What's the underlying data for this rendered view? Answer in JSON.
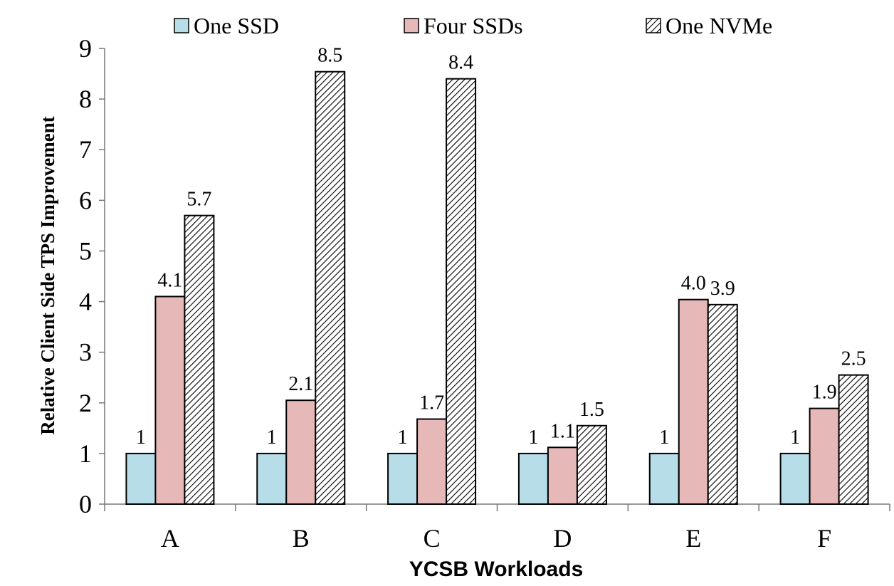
{
  "chart_data": {
    "type": "bar",
    "title": "",
    "xlabel": "YCSB Workloads",
    "ylabel": "Relative Client Side TPS Improvement",
    "categories": [
      "A",
      "B",
      "C",
      "D",
      "E",
      "F"
    ],
    "ylim": [
      0,
      9
    ],
    "yticks": [
      0,
      1,
      2,
      3,
      4,
      5,
      6,
      7,
      8,
      9
    ],
    "grid": false,
    "legend_position": "top",
    "series": [
      {
        "name": "One SSD",
        "values": [
          1,
          1,
          1,
          1,
          1,
          1
        ],
        "labels": [
          "1",
          "1",
          "1",
          "1",
          "1",
          "1"
        ],
        "color": "#b7dde8",
        "pattern": "solid"
      },
      {
        "name": "Four SSDs",
        "values": [
          4.1,
          2.05,
          1.68,
          1.12,
          4.04,
          1.89
        ],
        "labels": [
          "4.1",
          "2.1",
          "1.7",
          "1.1",
          "4.0",
          "1.9"
        ],
        "color": "#e6b9b8",
        "pattern": "solid"
      },
      {
        "name": "One NVMe",
        "values": [
          5.7,
          8.54,
          8.4,
          1.55,
          3.94,
          2.55
        ],
        "labels": [
          "5.7",
          "8.5",
          "8.4",
          "1.5",
          "3.9",
          "2.5"
        ],
        "color": "#ffffff",
        "pattern": "diagonal-hatch"
      }
    ]
  }
}
